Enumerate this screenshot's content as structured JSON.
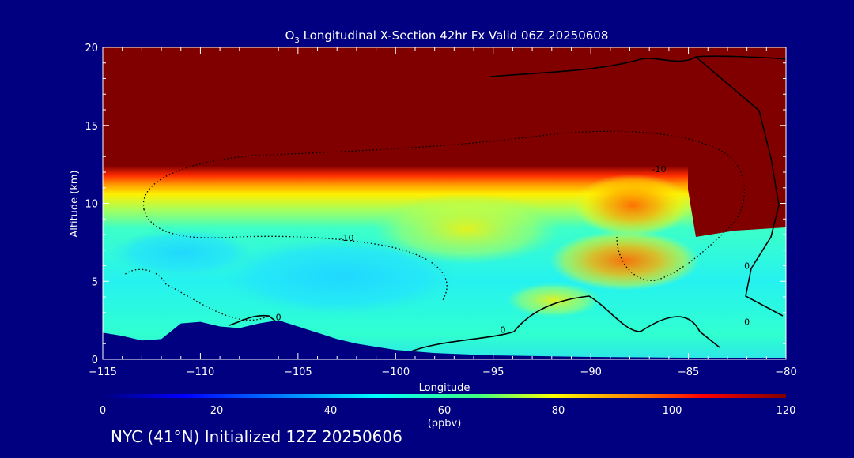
{
  "title": {
    "species": "O",
    "subscript": "3",
    "rest": " Longitudinal X-Section 42hr  Fx Valid 06Z 20250608"
  },
  "footer": "NYC (41°N) Initialized 12Z 20250606",
  "colors": {
    "background": "#000080",
    "foreground": "#ffffff",
    "high_ozone": "#800000",
    "terrain": "#000080",
    "contour": "#000000"
  },
  "chart_data": {
    "type": "heatmap",
    "xlabel": "Longitude",
    "ylabel": "Altitude (km)",
    "xlim": [
      -115,
      -80
    ],
    "ylim": [
      0,
      20
    ],
    "x_ticks": [
      -115,
      -110,
      -105,
      -100,
      -95,
      -90,
      -85,
      -80
    ],
    "y_ticks": [
      0,
      5,
      10,
      15,
      20
    ],
    "x_tick_labels": [
      "−115",
      "−110",
      "−105",
      "−100",
      "−95",
      "−90",
      "−85",
      "−80"
    ],
    "y_tick_labels": [
      "0",
      "5",
      "10",
      "15",
      "20"
    ],
    "colorbar": {
      "label": "(ppbv)",
      "range": [
        0,
        120
      ],
      "ticks": [
        0,
        20,
        40,
        60,
        80,
        100,
        120
      ],
      "tick_labels": [
        "0",
        "20",
        "40",
        "60",
        "80",
        "100",
        "120"
      ],
      "colormap": "rainbow (blue–cyan–green–yellow–red–dark red)"
    },
    "contour_labels": [
      {
        "text": "-10",
        "lon": -102.5,
        "alt": 7.6
      },
      {
        "text": "-10",
        "lon": -86.5,
        "alt": 12.0
      },
      {
        "text": "0",
        "lon": -106,
        "alt": 2.5
      },
      {
        "text": "0",
        "lon": -94.5,
        "alt": 1.7
      },
      {
        "text": "0",
        "lon": -82,
        "alt": 5.8
      },
      {
        "text": "0",
        "lon": -82,
        "alt": 2.2
      }
    ],
    "field_summary": [
      {
        "region": "stratosphere",
        "lon_range": [
          -115,
          -80
        ],
        "alt_range": [
          11,
          20
        ],
        "ozone_ppbv": 120
      },
      {
        "region": "mid troposphere minimum",
        "lon_range": [
          -105,
          -100
        ],
        "alt_range": [
          3,
          6
        ],
        "ozone_ppbv": 40
      },
      {
        "region": "intrusion tongue",
        "lon_range": [
          -93,
          -85
        ],
        "alt_range": [
          4,
          10
        ],
        "ozone_ppbv": 85
      }
    ],
    "terrain_profile": {
      "lon": [
        -115,
        -114,
        -113,
        -112,
        -111,
        -110,
        -109,
        -108,
        -107,
        -106,
        -105,
        -104,
        -103,
        -102,
        -101,
        -100,
        -99,
        -98,
        -97,
        -96,
        -95,
        -90,
        -85,
        -80
      ],
      "alt": [
        1.7,
        1.5,
        1.2,
        1.3,
        2.3,
        2.4,
        2.1,
        2.0,
        2.3,
        2.5,
        2.1,
        1.7,
        1.3,
        1.0,
        0.8,
        0.6,
        0.5,
        0.4,
        0.35,
        0.3,
        0.25,
        0.15,
        0.1,
        0.1
      ]
    }
  }
}
